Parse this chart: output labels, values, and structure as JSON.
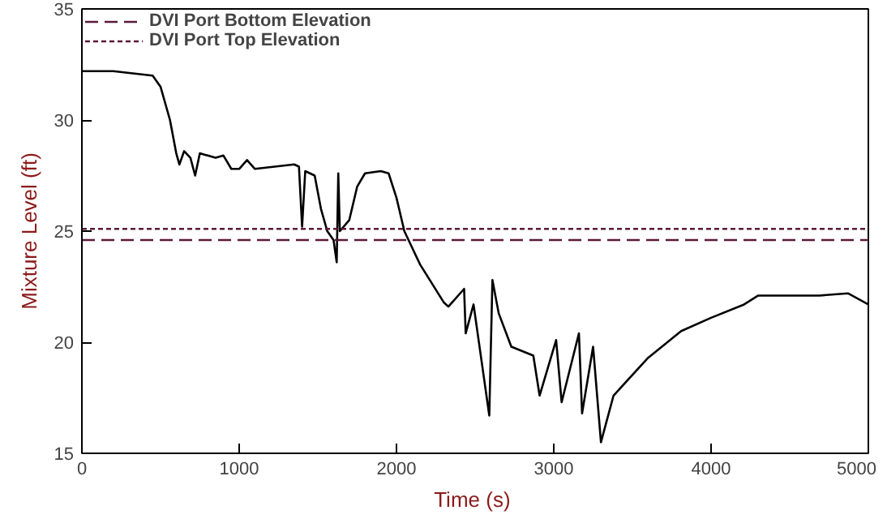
{
  "chart_data": {
    "type": "line",
    "xlabel": "Time  (s)",
    "ylabel": "Mixture Level (ft)",
    "xlim": [
      0,
      5000
    ],
    "ylim": [
      15,
      35
    ],
    "xticks": [
      0,
      1000,
      2000,
      3000,
      4000,
      5000
    ],
    "yticks": [
      15,
      20,
      25,
      30,
      35
    ],
    "grid": false,
    "legend": "top left",
    "line_style": "solid",
    "marker": "none",
    "x": [
      0,
      200,
      450,
      500,
      560,
      600,
      620,
      650,
      690,
      720,
      750,
      850,
      900,
      950,
      1000,
      1050,
      1100,
      1350,
      1380,
      1400,
      1420,
      1480,
      1520,
      1560,
      1600,
      1620,
      1630,
      1640,
      1700,
      1750,
      1800,
      1900,
      1950,
      2000,
      2050,
      2150,
      2300,
      2330,
      2430,
      2440,
      2490,
      2590,
      2610,
      2650,
      2730,
      2870,
      2910,
      3015,
      3050,
      3160,
      3180,
      3250,
      3300,
      3380,
      3600,
      3810,
      4000,
      4210,
      4300,
      4690,
      4870,
      5000
    ],
    "series": [
      {
        "color": "#000000",
        "values": [
          32.2,
          32.2,
          32.0,
          31.5,
          30.0,
          28.5,
          28.0,
          28.6,
          28.3,
          27.5,
          28.5,
          28.3,
          28.4,
          27.8,
          27.8,
          28.2,
          27.8,
          28.0,
          27.9,
          25.2,
          27.7,
          27.5,
          26.0,
          25.0,
          24.6,
          23.6,
          27.6,
          25.0,
          25.5,
          27.0,
          27.6,
          27.7,
          27.6,
          26.5,
          25.0,
          23.5,
          21.8,
          21.6,
          22.4,
          20.4,
          21.7,
          16.7,
          22.8,
          21.3,
          19.8,
          19.4,
          17.6,
          20.1,
          17.3,
          20.4,
          16.8,
          19.8,
          15.5,
          17.6,
          19.3,
          20.5,
          21.1,
          21.7,
          22.1,
          22.1,
          22.2,
          21.7
        ]
      }
    ],
    "ref_lines": [
      {
        "axis": "y",
        "value": 24.6,
        "label": "DVI Port Bottom Elevation",
        "color": "#5a1a3a",
        "line_style": "dashed"
      },
      {
        "axis": "y",
        "value": 25.1,
        "label": "DVI Port Top Elevation",
        "color": "#5a1a3a",
        "line_style": "dotted"
      }
    ]
  }
}
